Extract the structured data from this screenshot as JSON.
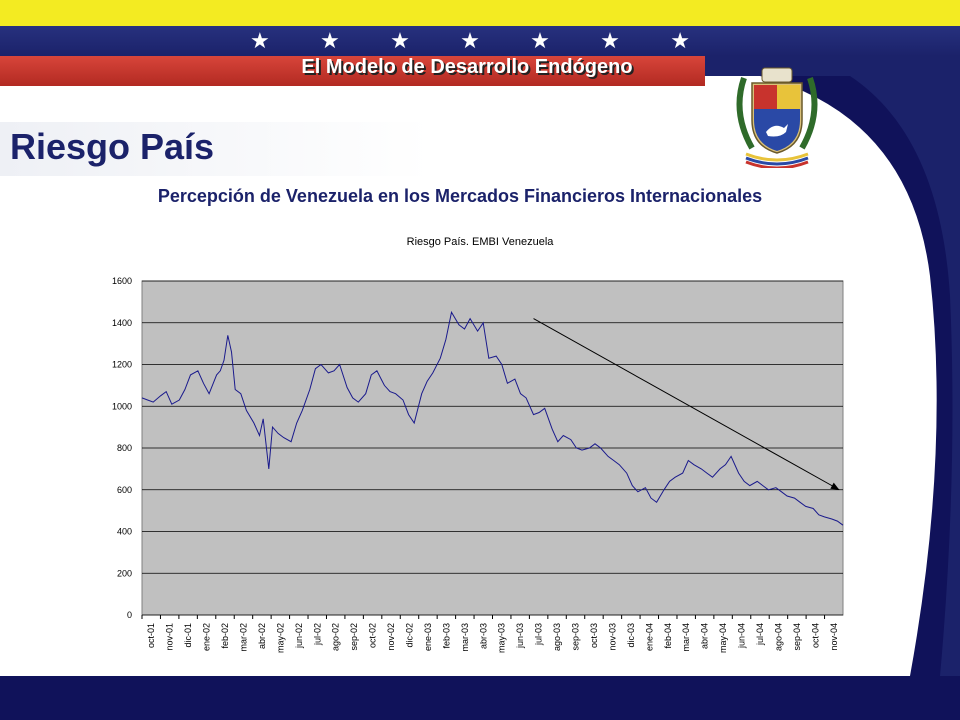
{
  "header": {
    "tagline": "El Modelo de Desarrollo Endógeno",
    "star_count": 7,
    "colors": {
      "yellow": "#f3eb22",
      "blue": "#1b226a",
      "red": "#c0332a"
    }
  },
  "slide": {
    "title": "Riesgo País",
    "subtitle": "Percepción de Venezuela en los Mercados Financieros Internacionales"
  },
  "chart_data": {
    "type": "line",
    "title": "Riesgo País. EMBI Venezuela",
    "xlabel": "",
    "ylabel": "",
    "ylim": [
      0,
      1600
    ],
    "yticks": [
      0,
      200,
      400,
      600,
      800,
      1000,
      1200,
      1400,
      1600
    ],
    "categories": [
      "oct-01",
      "nov-01",
      "dic-01",
      "ene-02",
      "feb-02",
      "mar-02",
      "abr-02",
      "may-02",
      "jun-02",
      "jul-02",
      "ago-02",
      "sep-02",
      "oct-02",
      "nov-02",
      "dic-02",
      "ene-03",
      "feb-03",
      "mar-03",
      "abr-03",
      "may-03",
      "jun-03",
      "jul-03",
      "ago-03",
      "sep-03",
      "oct-03",
      "nov-03",
      "dic-03",
      "ene-04",
      "feb-04",
      "mar-04",
      "abr-04",
      "may-04",
      "jun-04",
      "jul-04",
      "ago-04",
      "sep-04",
      "oct-04",
      "nov-04"
    ],
    "grid": true,
    "background": "#c0c0c0",
    "series": [
      {
        "color": "#1a1a8c",
        "x": [
          0,
          0.3,
          0.6,
          1,
          1.3,
          1.6,
          2,
          2.3,
          2.6,
          3,
          3.3,
          3.6,
          4,
          4.2,
          4.4,
          4.6,
          4.8,
          5,
          5.3,
          5.6,
          6,
          6.2,
          6.3,
          6.5,
          6.8,
          7,
          7.3,
          7.6,
          8,
          8.3,
          8.6,
          9,
          9.3,
          9.6,
          10,
          10.3,
          10.6,
          11,
          11.3,
          11.6,
          12,
          12.3,
          12.6,
          13,
          13.3,
          13.6,
          14,
          14.3,
          14.6,
          15,
          15.3,
          15.6,
          16,
          16.3,
          16.6,
          17,
          17.3,
          17.6,
          18,
          18.3,
          18.6,
          19,
          19.3,
          19.6,
          20,
          20.3,
          20.6,
          21,
          21.3,
          21.6,
          22,
          22.3,
          22.6,
          23,
          23.3,
          23.6,
          24,
          24.3,
          24.6,
          25,
          25.3,
          25.6,
          26,
          26.3,
          26.6,
          27,
          27.3,
          27.6,
          28,
          28.3,
          28.6,
          29,
          29.3,
          29.6,
          30,
          30.3,
          30.6,
          31,
          31.3,
          31.6,
          32,
          32.3,
          32.6,
          33,
          33.3,
          33.6,
          34,
          34.3,
          34.6,
          35,
          35.3,
          35.6,
          36,
          36.3,
          36.6,
          37,
          37.3,
          37.6
        ],
        "values": [
          1040,
          1030,
          1020,
          1050,
          1070,
          1010,
          1030,
          1080,
          1150,
          1170,
          1110,
          1060,
          1150,
          1170,
          1220,
          1340,
          1260,
          1080,
          1060,
          980,
          920,
          880,
          860,
          940,
          700,
          900,
          870,
          850,
          830,
          920,
          980,
          1080,
          1180,
          1200,
          1160,
          1170,
          1200,
          1090,
          1040,
          1020,
          1060,
          1150,
          1170,
          1100,
          1070,
          1060,
          1030,
          960,
          920,
          1060,
          1120,
          1160,
          1230,
          1320,
          1450,
          1390,
          1370,
          1420,
          1360,
          1400,
          1230,
          1240,
          1200,
          1110,
          1130,
          1060,
          1040,
          960,
          970,
          990,
          890,
          830,
          860,
          840,
          800,
          790,
          800,
          820,
          800,
          760,
          740,
          720,
          680,
          620,
          590,
          610,
          560,
          540,
          600,
          640,
          660,
          680,
          740,
          720,
          700,
          680,
          660,
          700,
          720,
          760,
          680,
          640,
          620,
          640,
          620,
          600,
          610,
          590,
          570,
          560,
          540,
          520,
          510,
          480,
          470,
          460,
          450,
          430
        ]
      }
    ],
    "trend_line": {
      "x": [
        21,
        37.4
      ],
      "values": [
        1420,
        600
      ]
    }
  }
}
